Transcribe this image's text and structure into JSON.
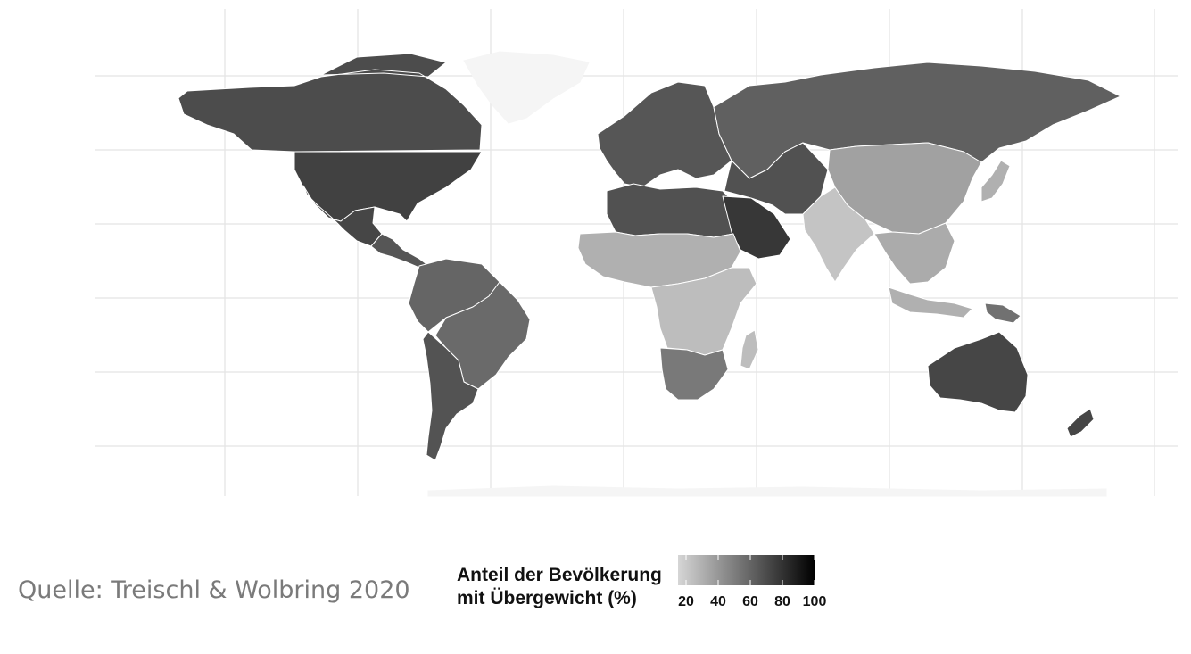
{
  "chart_data": {
    "type": "choropleth",
    "variable": "Anteil der Bevölkerung mit Übergewicht (%)",
    "legend": {
      "title_line1": "Anteil der Bevölkerung",
      "title_line2": "mit Übergewicht (%)",
      "ticks": [
        "20",
        "40",
        "60",
        "80",
        "100"
      ],
      "range": [
        15,
        100
      ],
      "color_low": "#d6d6d6",
      "color_high": "#000000"
    },
    "regions": [
      {
        "name": "North America",
        "value": 74
      },
      {
        "name": "Canada",
        "value": 70
      },
      {
        "name": "Greenland",
        "value": null
      },
      {
        "name": "Mexico",
        "value": 72
      },
      {
        "name": "Central America",
        "value": 66
      },
      {
        "name": "South America North",
        "value": 60
      },
      {
        "name": "Brazil",
        "value": 58
      },
      {
        "name": "Southern Cone",
        "value": 67
      },
      {
        "name": "Europe",
        "value": 66
      },
      {
        "name": "Russia & Central Asia",
        "value": 62
      },
      {
        "name": "China & Mongolia",
        "value": 36
      },
      {
        "name": "North Africa",
        "value": 68
      },
      {
        "name": "Arabian Peninsula",
        "value": 78
      },
      {
        "name": "Iran & Middle East",
        "value": 68
      },
      {
        "name": "Sahel & West Africa",
        "value": 30
      },
      {
        "name": "Central & East Africa",
        "value": 25
      },
      {
        "name": "Southern Africa",
        "value": 52
      },
      {
        "name": "Madagascar",
        "value": 25
      },
      {
        "name": "India & South Asia",
        "value": 22
      },
      {
        "name": "Southeast Asia",
        "value": 32
      },
      {
        "name": "Japan",
        "value": 30
      },
      {
        "name": "Indonesia",
        "value": 30
      },
      {
        "name": "Papua New Guinea",
        "value": 55
      },
      {
        "name": "Australia",
        "value": 72
      },
      {
        "name": "New Zealand",
        "value": 72
      }
    ]
  },
  "source": "Quelle: Treischl & Wolbring 2020"
}
